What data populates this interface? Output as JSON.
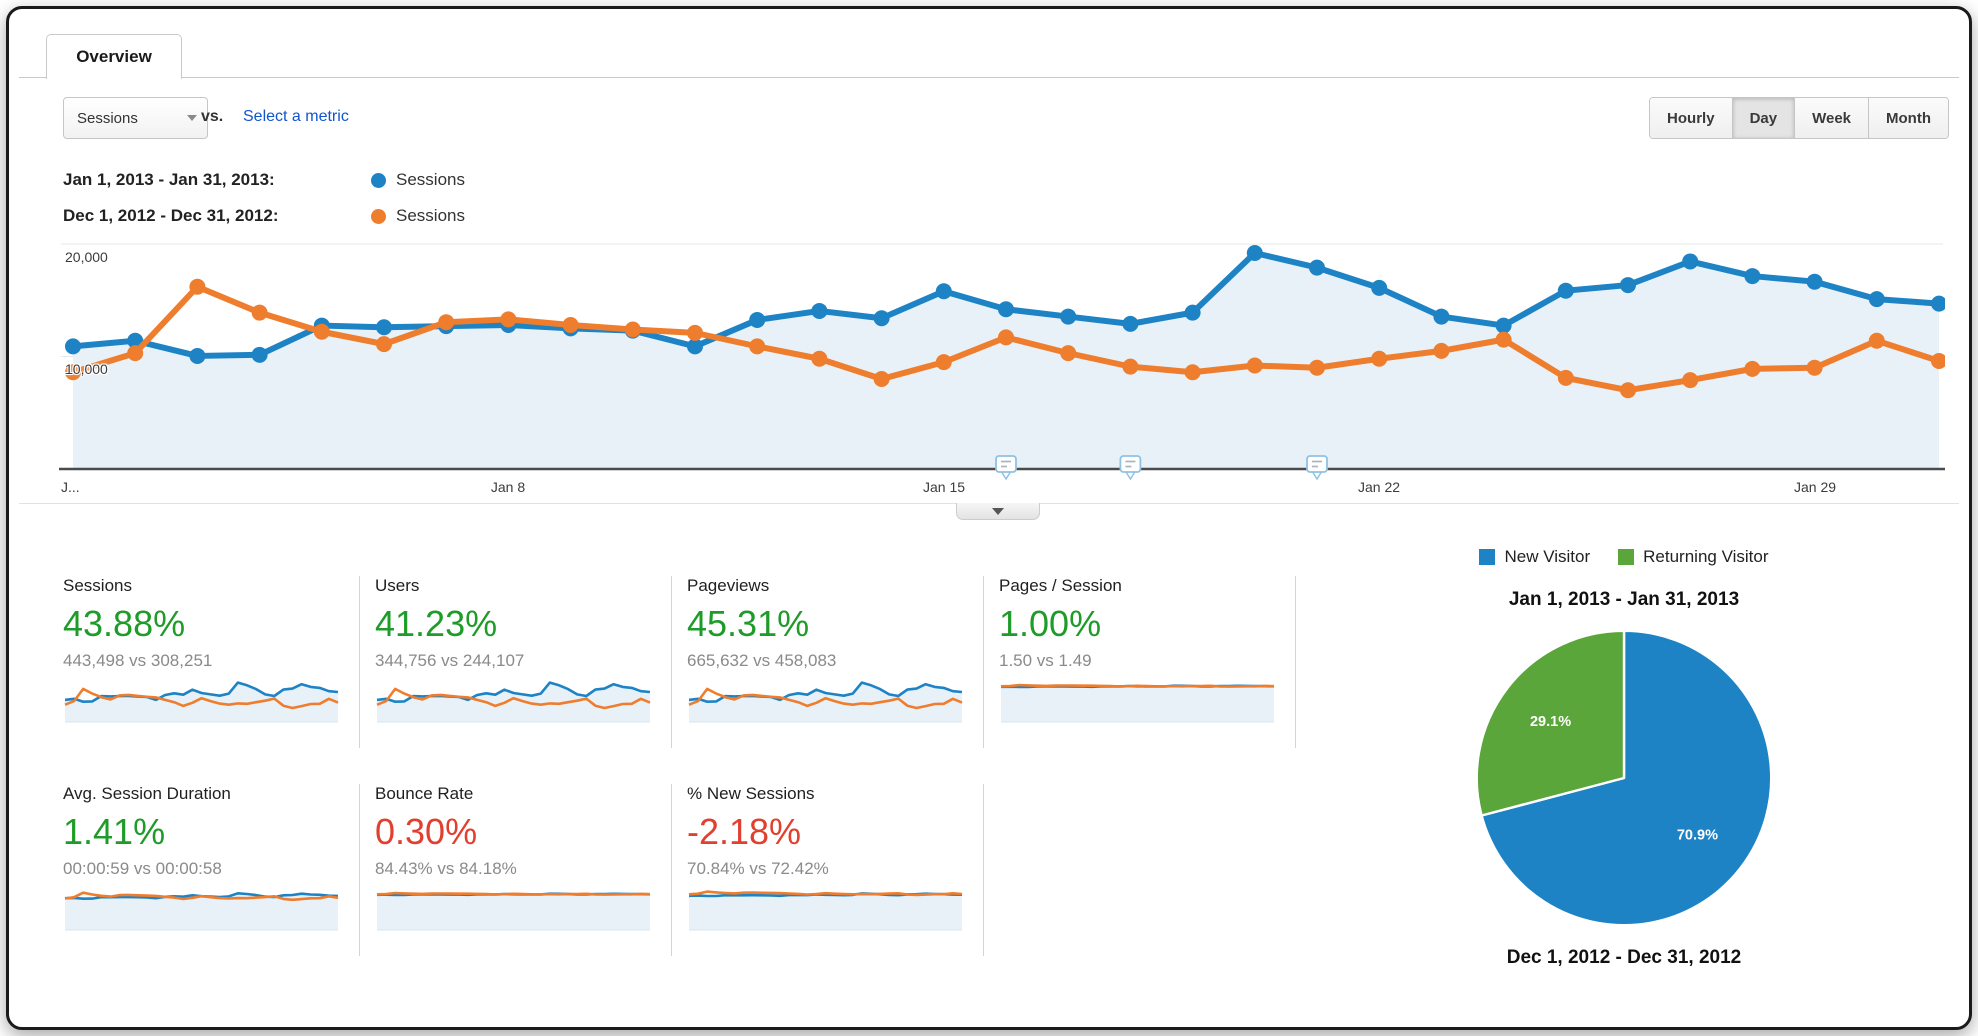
{
  "tab": {
    "label": "Overview"
  },
  "controls": {
    "metric_selector": "Sessions",
    "vs_label": "vs.",
    "select_metric_link": "Select a metric",
    "granularity": [
      {
        "label": "Hourly",
        "active": false
      },
      {
        "label": "Day",
        "active": true
      },
      {
        "label": "Week",
        "active": false
      },
      {
        "label": "Month",
        "active": false
      }
    ]
  },
  "legend": [
    {
      "range": "Jan 1, 2013 - Jan 31, 2013:",
      "metric": "Sessions",
      "color": "#1d83c5"
    },
    {
      "range": "Dec 1, 2012 - Dec 31, 2012:",
      "metric": "Sessions",
      "color": "#ee7d2d"
    }
  ],
  "chart_data": [
    {
      "type": "line",
      "title": "Sessions by day — Jan 1, 2013 - Jan 31, 2013 vs Dec 1, 2012 - Dec 31, 2012",
      "x": [
        1,
        2,
        3,
        4,
        5,
        6,
        7,
        8,
        9,
        10,
        11,
        12,
        13,
        14,
        15,
        16,
        17,
        18,
        19,
        20,
        21,
        22,
        23,
        24,
        25,
        26,
        27,
        28,
        29,
        30,
        31
      ],
      "series": [
        {
          "name": "Sessions (Jan 1, 2013 - Jan 31, 2013)",
          "color": "#1d83c5",
          "values": [
            10900,
            11400,
            10050,
            10150,
            12750,
            12600,
            12700,
            12800,
            12500,
            12300,
            10900,
            13250,
            14050,
            13400,
            15800,
            14200,
            13550,
            12900,
            13900,
            19200,
            17900,
            16100,
            13550,
            12750,
            15850,
            16350,
            18450,
            17150,
            16650,
            15100,
            14700
          ]
        },
        {
          "name": "Sessions (Dec 1, 2012 - Dec 31, 2012)",
          "color": "#ee7d2d",
          "values": [
            8600,
            10300,
            16200,
            13900,
            12200,
            11100,
            13050,
            13300,
            12800,
            12400,
            12100,
            10900,
            9800,
            8000,
            9500,
            11700,
            10300,
            9100,
            8600,
            9200,
            9000,
            9800,
            10500,
            11500,
            8100,
            7000,
            7900,
            8900,
            9000,
            11400,
            9600
          ]
        }
      ],
      "ylim": [
        0,
        22000
      ],
      "yticks": [
        10000,
        20000
      ],
      "ytick_labels": [
        "10,000",
        "20,000"
      ],
      "xtick_days": [
        1,
        8,
        15,
        22,
        29
      ],
      "xtick_labels": [
        "J...",
        "Jan 8",
        "Jan 15",
        "Jan 22",
        "Jan 29"
      ],
      "annotation_days": [
        16,
        18,
        21
      ],
      "grid": "horizontal",
      "area_fill": true,
      "legend_position": "top-left"
    },
    {
      "type": "pie",
      "title": "Jan 1, 2013 - Jan 31, 2013",
      "labels": [
        "New Visitor",
        "Returning Visitor"
      ],
      "values": [
        70.9,
        29.1
      ],
      "display_labels": [
        "70.9%",
        "29.1%"
      ],
      "colors": [
        "#1d83c5",
        "#5aa63a"
      ],
      "bottom_caption": "Dec 1, 2012 - Dec 31, 2012"
    }
  ],
  "metrics": [
    {
      "title": "Sessions",
      "delta": "43.88%",
      "delta_color": "#1e9b28",
      "sub": "443,498 vs 308,251",
      "spark": "volume"
    },
    {
      "title": "Users",
      "delta": "41.23%",
      "delta_color": "#1e9b28",
      "sub": "344,756 vs 244,107",
      "spark": "volume"
    },
    {
      "title": "Pageviews",
      "delta": "45.31%",
      "delta_color": "#1e9b28",
      "sub": "665,632 vs 458,083",
      "spark": "volume"
    },
    {
      "title": "Pages / Session",
      "delta": "1.00%",
      "delta_color": "#1e9b28",
      "sub": "1.50 vs 1.49",
      "spark": "flat"
    },
    {
      "title": "Avg. Session Duration",
      "delta": "1.41%",
      "delta_color": "#1e9b28",
      "sub": "00:00:59 vs 00:00:58",
      "spark": "duration"
    },
    {
      "title": "Bounce Rate",
      "delta": "0.30%",
      "delta_color": "#e1402f",
      "sub": "84.43% vs 84.18%",
      "spark": "flat"
    },
    {
      "title": "% New Sessions",
      "delta": "-2.18%",
      "delta_color": "#e1402f",
      "sub": "70.84% vs 72.42%",
      "spark": "wavy"
    }
  ],
  "pie_legend": [
    {
      "label": "New Visitor",
      "color": "#1d83c5"
    },
    {
      "label": "Returning Visitor",
      "color": "#5aa63a"
    }
  ],
  "colors": {
    "primary_series": "#1d83c5",
    "comparison_series": "#ee7d2d",
    "area_fill": "#e8f1f8",
    "positive": "#1e9b28",
    "negative": "#e1402f",
    "link": "#1155cc"
  }
}
